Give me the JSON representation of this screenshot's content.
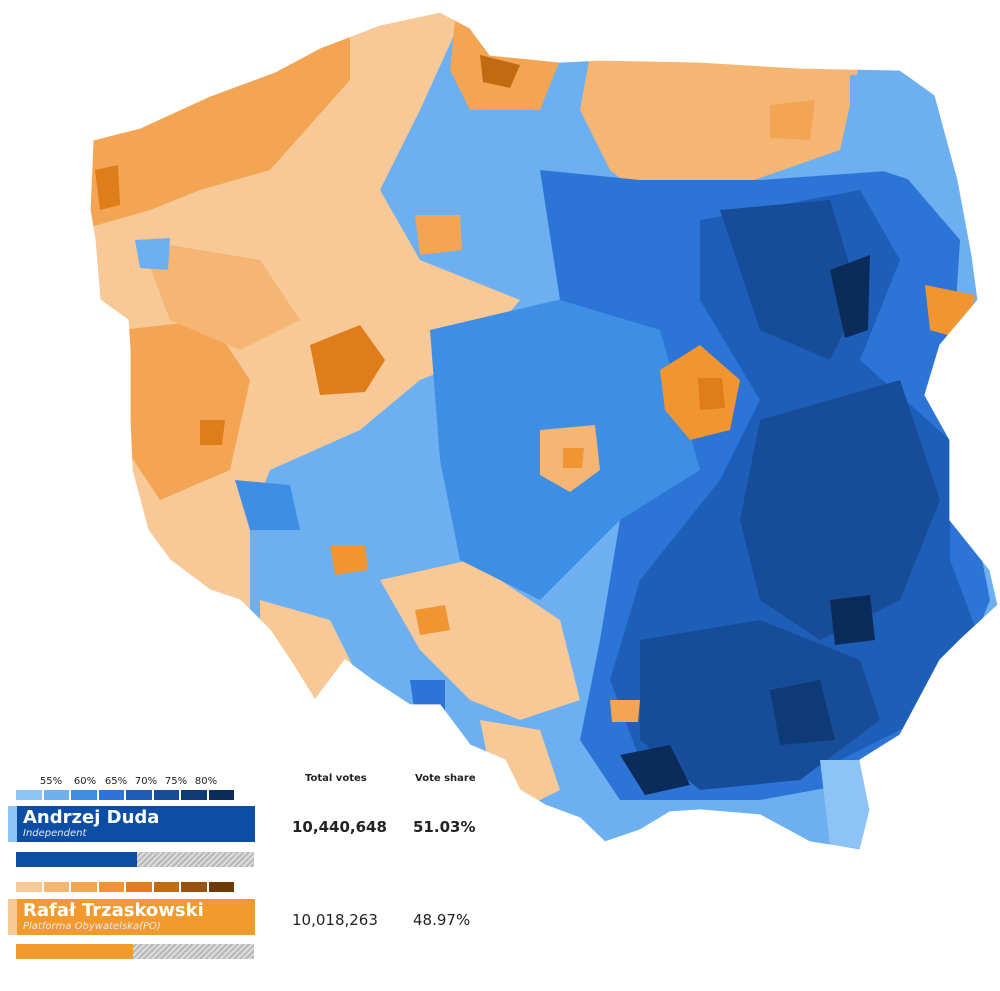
{
  "colors": {
    "duda_scale": [
      "#8ec3f5",
      "#6cb0f2",
      "#3f8ee6",
      "#2c74d6",
      "#1d5eb8",
      "#174c98",
      "#0f3a78",
      "#0b2b5b"
    ],
    "trz_scale": [
      "#f8c896",
      "#f5b573",
      "#f3a553",
      "#f09531",
      "#de7d1a",
      "#c06a14",
      "#9a530e",
      "#6d3a08"
    ],
    "duda_brand": "#0c4ea6",
    "duda_stripe": "#8ec3f5",
    "trz_brand": "#f29a2e",
    "trz_stripe": "#f8c896"
  },
  "legend": {
    "ticks": [
      "55%",
      "60%",
      "65%",
      "70%",
      "75%",
      "80%"
    ]
  },
  "columns": {
    "total_votes": "Total votes",
    "vote_share": "Vote share"
  },
  "candidates": [
    {
      "name": "Andrzej Duda",
      "party": "Independent",
      "votes": "10,440,648",
      "share": "51.03%",
      "share_value": 51.03,
      "winner": true
    },
    {
      "name": "Rafał Trzaskowski",
      "party": "Platforma Obywatelska(PO)",
      "votes": "10,018,263",
      "share": "48.97%",
      "share_value": 48.97,
      "winner": false
    }
  ]
}
